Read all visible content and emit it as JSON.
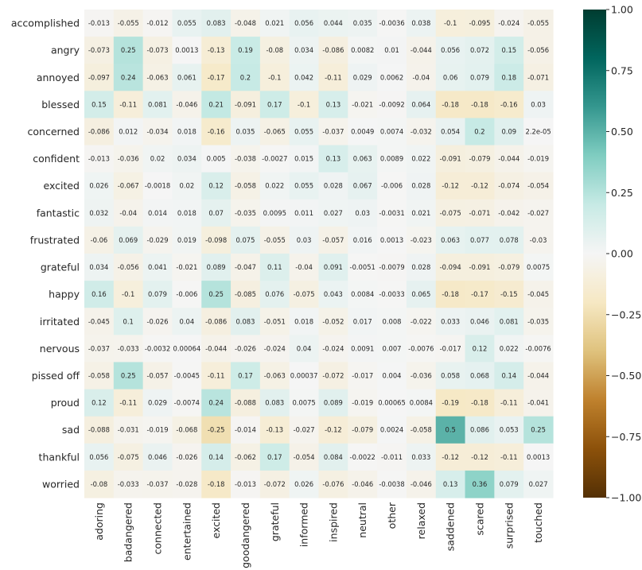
{
  "chart_data": {
    "type": "heatmap",
    "title": "",
    "xlabel": "",
    "ylabel": "",
    "colormap": "BrBG",
    "vmin": -1.0,
    "vmax": 1.0,
    "colorbar_ticks": [
      "1.00",
      "0.75",
      "0.50",
      "0.25",
      "0.00",
      "−0.25",
      "−0.50",
      "−0.75",
      "−1.00"
    ],
    "colorbar_tick_values": [
      1.0,
      0.75,
      0.5,
      0.25,
      0.0,
      -0.25,
      -0.5,
      -0.75,
      -1.0
    ],
    "columns": [
      "adoring",
      "badangered",
      "connected",
      "entertained",
      "excited",
      "goodangered",
      "grateful",
      "informed",
      "inspired",
      "neutral",
      "other",
      "relaxed",
      "saddened",
      "scared",
      "surprised",
      "touched"
    ],
    "rows": [
      "accomplished",
      "angry",
      "annoyed",
      "blessed",
      "concerned",
      "confident",
      "excited",
      "fantastic",
      "frustrated",
      "grateful",
      "happy",
      "irritated",
      "nervous",
      "pissed off",
      "proud",
      "sad",
      "thankful",
      "worried"
    ],
    "values": [
      [
        -0.013,
        -0.055,
        -0.012,
        0.055,
        0.083,
        -0.048,
        0.021,
        0.056,
        0.044,
        0.035,
        -0.0036,
        0.038,
        -0.1,
        -0.095,
        -0.024,
        -0.055
      ],
      [
        -0.073,
        0.25,
        -0.073,
        0.0013,
        -0.13,
        0.19,
        -0.08,
        0.034,
        -0.086,
        0.0082,
        0.01,
        -0.044,
        0.056,
        0.072,
        0.15,
        -0.056
      ],
      [
        -0.097,
        0.24,
        -0.063,
        0.061,
        -0.17,
        0.2,
        -0.1,
        0.042,
        -0.11,
        0.029,
        0.0062,
        -0.04,
        0.06,
        0.079,
        0.18,
        -0.071
      ],
      [
        0.15,
        -0.11,
        0.081,
        -0.046,
        0.21,
        -0.091,
        0.17,
        -0.1,
        0.13,
        -0.021,
        -0.0092,
        0.064,
        -0.18,
        -0.18,
        -0.16,
        0.03
      ],
      [
        -0.086,
        0.012,
        -0.034,
        0.018,
        -0.16,
        0.035,
        -0.065,
        0.055,
        -0.037,
        0.0049,
        0.0074,
        -0.032,
        0.054,
        0.2,
        0.09,
        2.2e-05
      ],
      [
        -0.013,
        -0.036,
        0.02,
        0.034,
        0.005,
        -0.038,
        -0.0027,
        0.015,
        0.13,
        0.063,
        0.0089,
        0.022,
        -0.091,
        -0.079,
        -0.044,
        -0.019
      ],
      [
        0.026,
        -0.067,
        -0.0018,
        0.02,
        0.12,
        -0.058,
        0.022,
        0.055,
        0.028,
        0.067,
        -0.006,
        0.028,
        -0.12,
        -0.12,
        -0.074,
        -0.054
      ],
      [
        0.032,
        -0.04,
        0.014,
        0.018,
        0.07,
        -0.035,
        0.0095,
        0.011,
        0.027,
        0.03,
        -0.0031,
        0.021,
        -0.075,
        -0.071,
        -0.042,
        -0.027
      ],
      [
        -0.06,
        0.069,
        -0.029,
        0.019,
        -0.098,
        0.075,
        -0.055,
        0.03,
        -0.057,
        0.016,
        0.0013,
        -0.023,
        0.063,
        0.077,
        0.078,
        -0.03
      ],
      [
        0.034,
        -0.056,
        0.041,
        -0.021,
        0.089,
        -0.047,
        0.11,
        -0.04,
        0.091,
        -0.0051,
        -0.0079,
        0.028,
        -0.094,
        -0.091,
        -0.079,
        0.0075
      ],
      [
        0.16,
        -0.1,
        0.079,
        -0.006,
        0.25,
        -0.085,
        0.076,
        -0.075,
        0.043,
        0.0084,
        -0.0033,
        0.065,
        -0.18,
        -0.17,
        -0.15,
        -0.045
      ],
      [
        -0.045,
        0.1,
        -0.026,
        0.04,
        -0.086,
        0.083,
        -0.051,
        0.018,
        -0.052,
        0.017,
        0.008,
        -0.022,
        0.033,
        0.046,
        0.081,
        -0.035
      ],
      [
        -0.037,
        -0.033,
        -0.0032,
        0.00064,
        -0.044,
        -0.026,
        -0.024,
        0.04,
        -0.024,
        0.0091,
        0.007,
        -0.0076,
        -0.017,
        0.12,
        0.022,
        -0.0076
      ],
      [
        -0.058,
        0.25,
        -0.057,
        -0.0045,
        -0.11,
        0.17,
        -0.063,
        0.00037,
        -0.072,
        -0.017,
        0.004,
        -0.036,
        0.058,
        0.068,
        0.14,
        -0.044
      ],
      [
        0.12,
        -0.11,
        0.029,
        -0.0074,
        0.24,
        -0.088,
        0.083,
        0.0075,
        0.089,
        -0.019,
        0.00065,
        0.0084,
        -0.19,
        -0.18,
        -0.11,
        -0.041
      ],
      [
        -0.088,
        -0.031,
        -0.019,
        -0.068,
        -0.25,
        -0.014,
        -0.13,
        -0.027,
        -0.12,
        -0.079,
        0.0024,
        -0.058,
        0.5,
        0.086,
        0.053,
        0.25
      ],
      [
        0.056,
        -0.075,
        0.046,
        -0.026,
        0.14,
        -0.062,
        0.17,
        -0.054,
        0.084,
        -0.0022,
        -0.011,
        0.033,
        -0.12,
        -0.12,
        -0.11,
        0.0013
      ],
      [
        -0.08,
        -0.033,
        -0.037,
        -0.028,
        -0.18,
        -0.013,
        -0.072,
        0.026,
        -0.076,
        -0.046,
        -0.0038,
        -0.046,
        0.13,
        0.36,
        0.079,
        0.027
      ]
    ],
    "annotations": [
      [
        "-0.013",
        "-0.055",
        "-0.012",
        "0.055",
        "0.083",
        "-0.048",
        "0.021",
        "0.056",
        "0.044",
        "0.035",
        "-0.0036",
        "0.038",
        "-0.1",
        "-0.095",
        "-0.024",
        "-0.055"
      ],
      [
        "-0.073",
        "0.25",
        "-0.073",
        "0.0013",
        "-0.13",
        "0.19",
        "-0.08",
        "0.034",
        "-0.086",
        "0.0082",
        "0.01",
        "-0.044",
        "0.056",
        "0.072",
        "0.15",
        "-0.056"
      ],
      [
        "-0.097",
        "0.24",
        "-0.063",
        "0.061",
        "-0.17",
        "0.2",
        "-0.1",
        "0.042",
        "-0.11",
        "0.029",
        "0.0062",
        "-0.04",
        "0.06",
        "0.079",
        "0.18",
        "-0.071"
      ],
      [
        "0.15",
        "-0.11",
        "0.081",
        "-0.046",
        "0.21",
        "-0.091",
        "0.17",
        "-0.1",
        "0.13",
        "-0.021",
        "-0.0092",
        "0.064",
        "-0.18",
        "-0.18",
        "-0.16",
        "0.03"
      ],
      [
        "-0.086",
        "0.012",
        "-0.034",
        "0.018",
        "-0.16",
        "0.035",
        "-0.065",
        "0.055",
        "-0.037",
        "0.0049",
        "0.0074",
        "-0.032",
        "0.054",
        "0.2",
        "0.09",
        "2.2e-05"
      ],
      [
        "-0.013",
        "-0.036",
        "0.02",
        "0.034",
        "0.005",
        "-0.038",
        "-0.0027",
        "0.015",
        "0.13",
        "0.063",
        "0.0089",
        "0.022",
        "-0.091",
        "-0.079",
        "-0.044",
        "-0.019"
      ],
      [
        "0.026",
        "-0.067",
        "-0.0018",
        "0.02",
        "0.12",
        "-0.058",
        "0.022",
        "0.055",
        "0.028",
        "0.067",
        "-0.006",
        "0.028",
        "-0.12",
        "-0.12",
        "-0.074",
        "-0.054"
      ],
      [
        "0.032",
        "-0.04",
        "0.014",
        "0.018",
        "0.07",
        "-0.035",
        "0.0095",
        "0.011",
        "0.027",
        "0.03",
        "-0.0031",
        "0.021",
        "-0.075",
        "-0.071",
        "-0.042",
        "-0.027"
      ],
      [
        "-0.06",
        "0.069",
        "-0.029",
        "0.019",
        "-0.098",
        "0.075",
        "-0.055",
        "0.03",
        "-0.057",
        "0.016",
        "0.0013",
        "-0.023",
        "0.063",
        "0.077",
        "0.078",
        "-0.03"
      ],
      [
        "0.034",
        "-0.056",
        "0.041",
        "-0.021",
        "0.089",
        "-0.047",
        "0.11",
        "-0.04",
        "0.091",
        "-0.0051",
        "-0.0079",
        "0.028",
        "-0.094",
        "-0.091",
        "-0.079",
        "0.0075"
      ],
      [
        "0.16",
        "-0.1",
        "0.079",
        "-0.006",
        "0.25",
        "-0.085",
        "0.076",
        "-0.075",
        "0.043",
        "0.0084",
        "-0.0033",
        "0.065",
        "-0.18",
        "-0.17",
        "-0.15",
        "-0.045"
      ],
      [
        "-0.045",
        "0.1",
        "-0.026",
        "0.04",
        "-0.086",
        "0.083",
        "-0.051",
        "0.018",
        "-0.052",
        "0.017",
        "0.008",
        "-0.022",
        "0.033",
        "0.046",
        "0.081",
        "-0.035"
      ],
      [
        "-0.037",
        "-0.033",
        "-0.0032",
        "0.00064",
        "-0.044",
        "-0.026",
        "-0.024",
        "0.04",
        "-0.024",
        "0.0091",
        "0.007",
        "-0.0076",
        "-0.017",
        "0.12",
        "0.022",
        "-0.0076"
      ],
      [
        "-0.058",
        "0.25",
        "-0.057",
        "-0.0045",
        "-0.11",
        "0.17",
        "-0.063",
        "0.00037",
        "-0.072",
        "-0.017",
        "0.004",
        "-0.036",
        "0.058",
        "0.068",
        "0.14",
        "-0.044"
      ],
      [
        "0.12",
        "-0.11",
        "0.029",
        "-0.0074",
        "0.24",
        "-0.088",
        "0.083",
        "0.0075",
        "0.089",
        "-0.019",
        "0.00065",
        "0.0084",
        "-0.19",
        "-0.18",
        "-0.11",
        "-0.041"
      ],
      [
        "-0.088",
        "-0.031",
        "-0.019",
        "-0.068",
        "-0.25",
        "-0.014",
        "-0.13",
        "-0.027",
        "-0.12",
        "-0.079",
        "0.0024",
        "-0.058",
        "0.5",
        "0.086",
        "0.053",
        "0.25"
      ],
      [
        "0.056",
        "-0.075",
        "0.046",
        "-0.026",
        "0.14",
        "-0.062",
        "0.17",
        "-0.054",
        "0.084",
        "-0.0022",
        "-0.011",
        "0.033",
        "-0.12",
        "-0.12",
        "-0.11",
        "0.0013"
      ],
      [
        "-0.08",
        "-0.033",
        "-0.037",
        "-0.028",
        "-0.18",
        "-0.013",
        "-0.072",
        "0.026",
        "-0.076",
        "-0.046",
        "-0.0038",
        "-0.046",
        "0.13",
        "0.36",
        "0.079",
        "0.027"
      ]
    ]
  }
}
